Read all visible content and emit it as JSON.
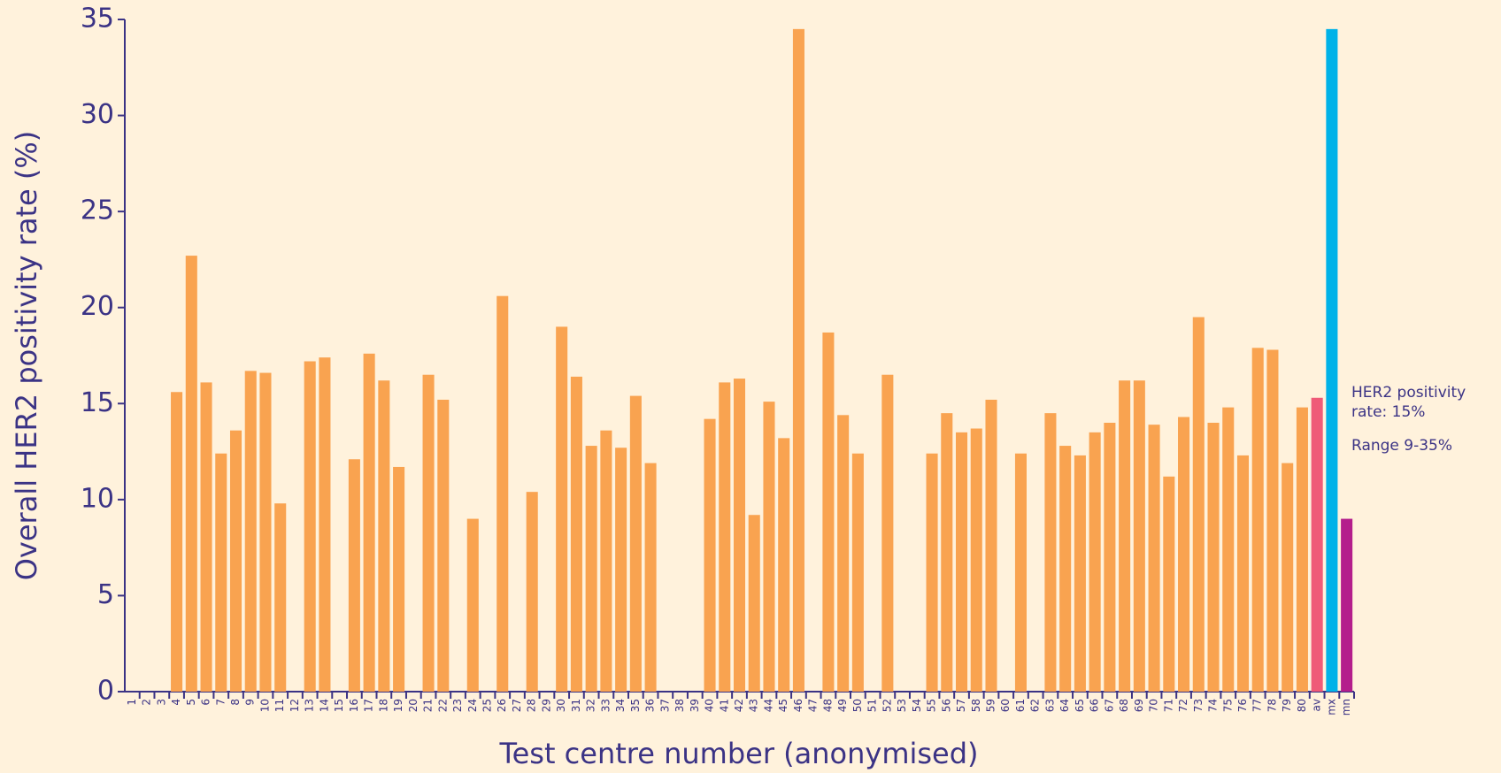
{
  "chart_data": {
    "type": "bar",
    "y_label": "Overall HER2 positivity rate (%)",
    "x_label": "Test centre number (anonymised)",
    "annotations": [
      "HER2 positivity",
      "rate: 15%",
      "Range 9-35%"
    ],
    "categories": [
      "1",
      "2",
      "3",
      "4",
      "5",
      "6",
      "7",
      "8",
      "9",
      "10",
      "11",
      "12",
      "13",
      "14",
      "15",
      "16",
      "17",
      "18",
      "19",
      "20",
      "21",
      "22",
      "23",
      "24",
      "25",
      "26",
      "27",
      "28",
      "29",
      "30",
      "31",
      "32",
      "33",
      "34",
      "35",
      "36",
      "37",
      "38",
      "39",
      "40",
      "41",
      "42",
      "43",
      "44",
      "45",
      "46",
      "47",
      "48",
      "49",
      "50",
      "51",
      "52",
      "53",
      "54",
      "55",
      "56",
      "57",
      "58",
      "59",
      "60",
      "61",
      "62",
      "63",
      "64",
      "65",
      "66",
      "67",
      "68",
      "69",
      "70",
      "71",
      "72",
      "73",
      "74",
      "75",
      "76",
      "77",
      "78",
      "79",
      "80",
      "av",
      "mx",
      "mn"
    ],
    "values": [
      null,
      null,
      null,
      15.6,
      22.7,
      16.1,
      12.4,
      13.6,
      16.7,
      16.6,
      9.8,
      null,
      17.2,
      17.4,
      null,
      12.1,
      17.6,
      16.2,
      11.7,
      null,
      16.5,
      15.2,
      null,
      9.0,
      null,
      20.6,
      null,
      10.4,
      null,
      19.0,
      16.4,
      12.8,
      13.6,
      12.7,
      15.4,
      11.9,
      null,
      null,
      null,
      14.2,
      16.1,
      16.3,
      9.2,
      15.1,
      13.2,
      34.5,
      null,
      18.7,
      14.4,
      12.4,
      null,
      16.5,
      null,
      null,
      12.4,
      14.5,
      13.5,
      13.7,
      15.2,
      null,
      12.4,
      null,
      14.5,
      12.8,
      12.3,
      13.5,
      14.0,
      16.2,
      16.2,
      13.9,
      11.2,
      14.3,
      19.5,
      14.0,
      14.8,
      12.3,
      17.9,
      17.8,
      11.9,
      14.8,
      15.3,
      34.5,
      9.0
    ],
    "color": "#f9a350",
    "highlight_colors": {
      "av": "#ef5a78",
      "mx": "#00b2e8",
      "mn": "#b41e8c"
    },
    "ylim": [
      0,
      35
    ],
    "yticks": [
      0,
      5,
      10,
      15,
      20,
      25,
      30,
      35
    ],
    "grid": false
  }
}
